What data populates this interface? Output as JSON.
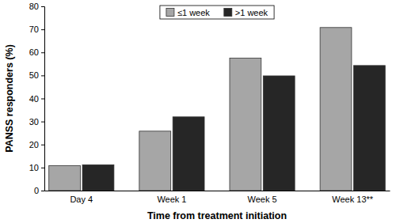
{
  "chart_data": {
    "type": "bar",
    "x_label": "Time from treatment initiation",
    "y_label": "PANSS responders (%)",
    "categories": [
      "Day 4",
      "Week 1",
      "Week 5",
      "Week 13**"
    ],
    "series": [
      {
        "name": "≤1 week",
        "color": "#a6a6a6",
        "values": [
          10.8,
          25.8,
          57.5,
          70.8
        ]
      },
      {
        "name": ">1 week",
        "color": "#262626",
        "values": [
          11.2,
          32.0,
          49.8,
          54.3
        ]
      }
    ],
    "ylim": [
      0,
      80
    ],
    "yticks": [
      0,
      10,
      20,
      30,
      40,
      50,
      60,
      70,
      80
    ],
    "grid": false,
    "legend": "top"
  }
}
